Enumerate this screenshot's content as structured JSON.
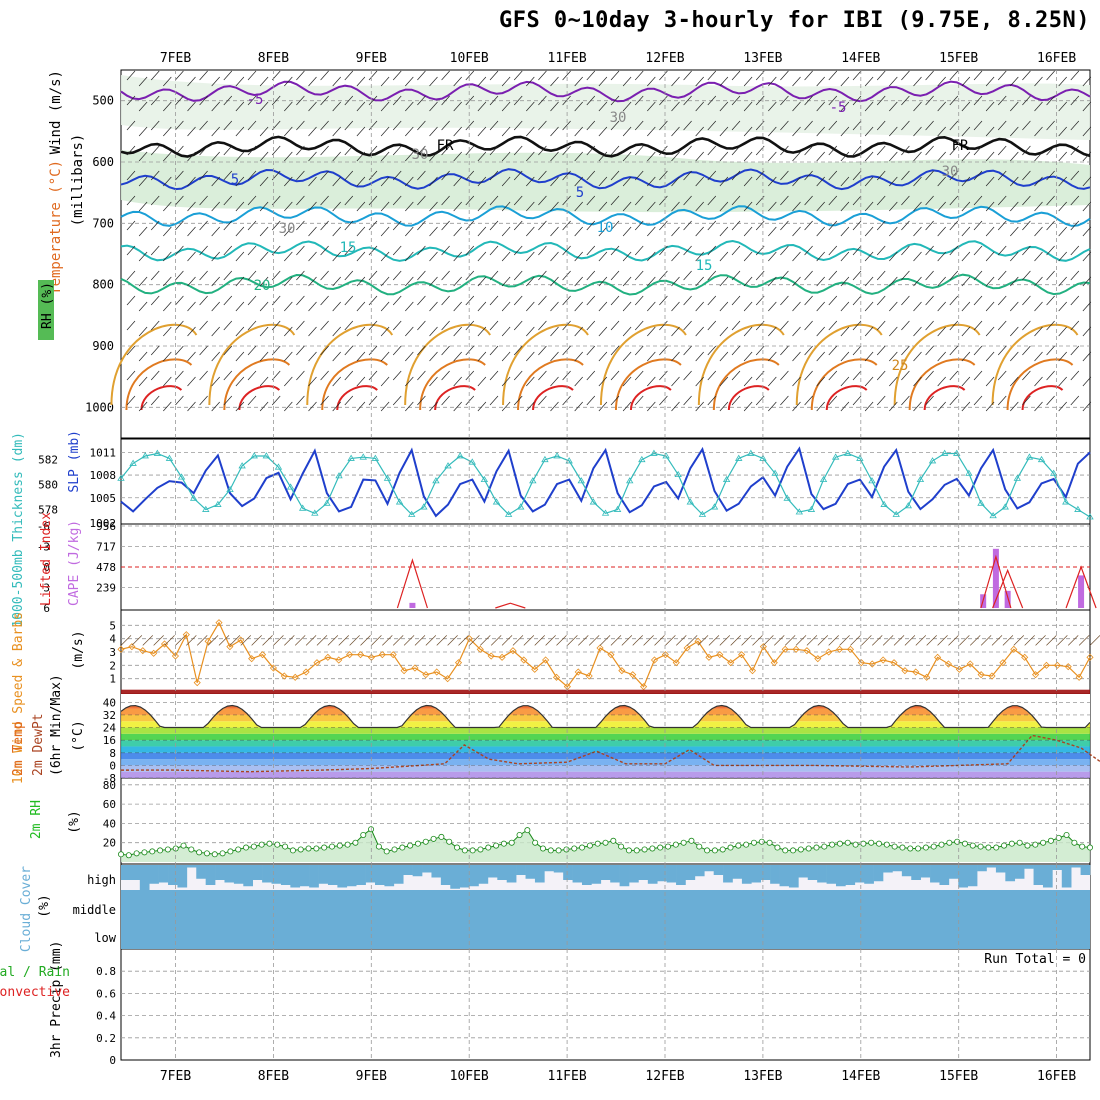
{
  "title": "GFS 0~10day 3-hourly for IBI (9.75E, 8.25N)",
  "run_total": "Run Total = 0",
  "date_labels": [
    "7FEB",
    "8FEB",
    "9FEB",
    "10FEB",
    "11FEB",
    "12FEB",
    "13FEB",
    "14FEB",
    "15FEB",
    "16FEB"
  ],
  "panel_labels": {
    "upper_wind": "Wind (m/s)",
    "upper_temp": "Temperature (°C)",
    "upper_rh": "RH (%)",
    "upper_mb": "(millibars)",
    "thickness": "1000-500mb Thickness (dm)",
    "slp": "SLP (mb)",
    "lifted_index": "Lifted Index",
    "cape": "CAPE (J/kg)",
    "wind10": "10m Wind Speed & Barbs",
    "wind10_unit": "(m/s)",
    "temp2m": "2m Temp",
    "dewpt2m": "2m DewPt",
    "tminmax": "(6hr Min/Max)",
    "temp_unit": "(°C)",
    "rh2m": "2m RH",
    "rh_unit": "(%)",
    "cloud": "Cloud Cover",
    "cloud_unit": "(%)",
    "precip": "3hr Precip (mm)",
    "precip_total_rain": "Total / Rain",
    "precip_convective": "Convective"
  },
  "colors": {
    "thickness": "#33bbbb",
    "slp": "#1f3fcc",
    "cape": "#c06ae0",
    "lifted_index": "#dd2222",
    "wind10": "#e89020",
    "rh2m": "#20bb20",
    "cloud": "#6aaed6",
    "temp_line": "#333333",
    "dewpt_line": "#aa4422"
  },
  "chart_data": [
    {
      "panel": "upper_air",
      "type": "contour",
      "y_axis": "pressure (mb)",
      "yticks": [
        500,
        600,
        700,
        800,
        900,
        1000
      ],
      "ylim": [
        1050,
        450
      ],
      "contour_labels": [
        "-5",
        "-5",
        "FR",
        "FR",
        "5",
        "5",
        "10",
        "15",
        "15",
        "20",
        "25",
        "30",
        "30",
        "30",
        "30"
      ],
      "isotherms_approx_mb": {
        "-5": 485,
        "0": 575,
        "5": 628,
        "10": 688,
        "15": 745,
        "20": 800
      }
    },
    {
      "panel": "thickness_slp",
      "type": "line",
      "yticks_left": [
        578,
        580,
        582
      ],
      "yticks_right": [
        1005,
        1008,
        1011
      ],
      "right_bottom_label": "1002",
      "ylim_left": [
        577,
        583.5
      ],
      "ylim_right": [
        1001.8,
        1012.5
      ],
      "series": [
        {
          "name": "SLP",
          "axis": "right",
          "values": [
            1004.5,
            1003.2,
            1004.8,
            1006.3,
            1007.2,
            1007.0,
            1005.6,
            1008.6,
            1010.6,
            1005.6,
            1003.9,
            1004.9,
            1007.6,
            1008.3,
            1004.8,
            1008.2,
            1011.2,
            1005.6,
            1003.2,
            1003.8,
            1007.4,
            1007.3,
            1004.2,
            1008.3,
            1011.3,
            1005.2,
            1002.6,
            1004.1,
            1006.8,
            1007.4,
            1004.5,
            1008.5,
            1011.2,
            1005.3,
            1003.2,
            1004.1,
            1006.8,
            1007.4,
            1004.6,
            1008.9,
            1011.3,
            1005.6,
            1003.1,
            1004.0,
            1006.5,
            1007.1,
            1004.9,
            1008.9,
            1011.4,
            1005.9,
            1003.3,
            1004.2,
            1006.5,
            1007.7,
            1005.3,
            1009.1,
            1011.5,
            1005.5,
            1003.5,
            1004.2,
            1006.8,
            1007.4,
            1005.1,
            1009.1,
            1011.3,
            1005.8,
            1003.5,
            1004.8,
            1006.7,
            1007.5,
            1005.3,
            1008.9,
            1011.3,
            1006.1,
            1003.6,
            1004.4,
            1006.9,
            1007.5,
            1005.1,
            1009.5,
            1011.0
          ]
        },
        {
          "name": "Thickness",
          "axis": "left",
          "values": [
            580.5,
            581.7,
            582.3,
            582.5,
            582.1,
            580.6,
            578.9,
            578.0,
            578.4,
            579.6,
            581.5,
            582.3,
            582.3,
            581.4,
            579.8,
            578.1,
            577.7,
            578.5,
            580.7,
            582.1,
            582.2,
            582.1,
            580.5,
            578.6,
            577.6,
            578.2,
            580.3,
            581.5,
            582.3,
            581.8,
            580.4,
            578.6,
            577.6,
            578.2,
            580.3,
            582.0,
            582.3,
            581.9,
            580.3,
            578.6,
            577.7,
            578.0,
            580.3,
            582.0,
            582.5,
            582.3,
            580.8,
            578.6,
            577.6,
            578.2,
            580.4,
            582.1,
            582.5,
            582.1,
            580.9,
            578.9,
            577.8,
            578.0,
            580.4,
            582.2,
            582.5,
            582.1,
            580.3,
            578.4,
            577.6,
            578.3,
            580.4,
            581.9,
            582.5,
            582.5,
            580.9,
            578.5,
            577.5,
            578.2,
            580.5,
            582.2,
            582.0,
            580.9,
            578.6,
            578.0,
            577.4
          ]
        }
      ]
    },
    {
      "panel": "lifted_index_cape",
      "type": "bar",
      "yticks_left": [
        -6,
        -3,
        0,
        3,
        6
      ],
      "yticks_right": [
        239,
        478,
        717,
        956
      ],
      "ylim_cape": [
        0,
        956
      ],
      "cape_bars": [
        {
          "day": 2.42,
          "value": 60
        },
        {
          "day": 8.25,
          "value": 160
        },
        {
          "day": 8.38,
          "value": 690
        },
        {
          "day": 8.5,
          "value": 200
        },
        {
          "day": 9.25,
          "value": 380
        }
      ],
      "lifted_index_peaks": [
        {
          "day": 2.42,
          "value": -1
        },
        {
          "day": 3.42,
          "value": 5.3
        },
        {
          "day": 8.38,
          "value": -1.5
        },
        {
          "day": 8.5,
          "value": 0.5
        },
        {
          "day": 9.25,
          "value": 0
        }
      ]
    },
    {
      "panel": "wind10",
      "type": "line",
      "name": "10m Wind Speed",
      "yticks": [
        1,
        2,
        3,
        4,
        5
      ],
      "ylim": [
        0,
        6
      ],
      "values": [
        3.2,
        3.4,
        3.1,
        2.9,
        3.6,
        2.7,
        4.3,
        0.7,
        3.8,
        5.2,
        3.4,
        3.9,
        2.5,
        2.8,
        1.8,
        1.2,
        1.1,
        1.5,
        2.2,
        2.6,
        2.4,
        2.8,
        2.8,
        2.6,
        2.8,
        2.8,
        1.6,
        1.8,
        1.3,
        1.5,
        1.0,
        2.2,
        4.0,
        3.2,
        2.7,
        2.6,
        3.1,
        2.4,
        1.7,
        2.4,
        1.1,
        0.4,
        1.5,
        1.2,
        3.3,
        2.8,
        1.6,
        1.3,
        0.4,
        2.4,
        2.8,
        2.2,
        3.3,
        3.8,
        2.6,
        2.8,
        2.2,
        2.8,
        1.6,
        3.4,
        2.2,
        3.2,
        3.2,
        3.1,
        2.5,
        3.0,
        3.2,
        3.2,
        2.2,
        2.1,
        2.4,
        2.2,
        1.6,
        1.5,
        1.1,
        2.6,
        2.1,
        1.7,
        2.1,
        1.3,
        1.2,
        2.2,
        3.2,
        2.6,
        1.3,
        2.0,
        2.0,
        1.9,
        1.1,
        2.6
      ]
    },
    {
      "panel": "temp_dewpt",
      "type": "area",
      "yticks": [
        -8,
        0,
        8,
        16,
        24,
        32,
        40
      ],
      "ylim": [
        -8,
        44
      ],
      "daily_max_temp": 38,
      "daily_min_temp": 24,
      "dewpt": [
        {
          "day": 0,
          "value": -3
        },
        {
          "day": 0.75,
          "value": -4
        },
        {
          "day": 1.5,
          "value": -3
        },
        {
          "day": 2.0,
          "value": -2
        },
        {
          "day": 2.5,
          "value": 0
        },
        {
          "day": 2.75,
          "value": 1
        },
        {
          "day": 2.95,
          "value": 13
        },
        {
          "day": 3.2,
          "value": 4
        },
        {
          "day": 3.5,
          "value": 1
        },
        {
          "day": 4.0,
          "value": 2
        },
        {
          "day": 4.3,
          "value": 9
        },
        {
          "day": 4.6,
          "value": 1
        },
        {
          "day": 5.0,
          "value": 1
        },
        {
          "day": 5.25,
          "value": 10
        },
        {
          "day": 5.5,
          "value": 0
        },
        {
          "day": 6.5,
          "value": 0
        },
        {
          "day": 7.5,
          "value": -1
        },
        {
          "day": 8.5,
          "value": 1
        },
        {
          "day": 8.75,
          "value": 19
        },
        {
          "day": 9.0,
          "value": 16
        },
        {
          "day": 9.25,
          "value": 11
        },
        {
          "day": 9.5,
          "value": 0
        },
        {
          "day": 9.85,
          "value": 20
        }
      ]
    },
    {
      "panel": "rh2m",
      "type": "line",
      "name": "2m RH",
      "yticks": [
        20,
        40,
        60,
        80
      ],
      "ylim": [
        0,
        85
      ],
      "values": [
        8,
        7,
        9,
        10,
        11,
        12,
        13,
        14,
        17,
        13,
        10,
        9,
        8,
        9,
        11,
        13,
        15,
        16,
        18,
        19,
        18,
        16,
        12,
        13,
        14,
        14,
        15,
        16,
        17,
        18,
        20,
        28,
        34,
        16,
        11,
        13,
        15,
        17,
        19,
        21,
        24,
        26,
        21,
        15,
        12,
        12,
        13,
        15,
        17,
        19,
        20,
        28,
        33,
        20,
        14,
        12,
        12,
        13,
        14,
        15,
        17,
        19,
        20,
        22,
        16,
        12,
        12,
        13,
        14,
        15,
        16,
        18,
        20,
        22,
        16,
        12,
        12,
        13,
        15,
        17,
        18,
        20,
        21,
        20,
        15,
        12,
        12,
        13,
        14,
        15,
        16,
        18,
        19,
        20,
        18,
        19,
        20,
        19,
        18,
        16,
        15,
        14,
        14,
        15,
        16,
        18,
        20,
        21,
        19,
        17,
        16,
        15,
        15,
        17,
        19,
        20,
        17,
        18,
        20,
        22,
        25,
        28,
        20,
        16,
        15
      ]
    },
    {
      "panel": "cloud_cover",
      "type": "bar",
      "levels": [
        "high",
        "middle",
        "low"
      ],
      "high_values": [
        60,
        60,
        100,
        75,
        70,
        80,
        90,
        10,
        55,
        80,
        60,
        70,
        75,
        85,
        60,
        70,
        75,
        80,
        90,
        85,
        90,
        75,
        80,
        90,
        85,
        80,
        70,
        80,
        85,
        75,
        40,
        45,
        30,
        50,
        80,
        95,
        90,
        85,
        75,
        50,
        60,
        70,
        40,
        55,
        70,
        25,
        30,
        60,
        70,
        80,
        75,
        60,
        70,
        85,
        70,
        60,
        75,
        65,
        70,
        80,
        60,
        45,
        25,
        40,
        70,
        55,
        75,
        70,
        60,
        75,
        85,
        90,
        50,
        60,
        70,
        75,
        85,
        80,
        70,
        75,
        65,
        30,
        25,
        45,
        60,
        50,
        70,
        80,
        55,
        90,
        85,
        25,
        10,
        30,
        65,
        55,
        15,
        80,
        90,
        20,
        90,
        10,
        40
      ]
    },
    {
      "panel": "precip",
      "type": "bar",
      "yticks": [
        0,
        0.2,
        0.4,
        0.6,
        0.8
      ],
      "ylim": [
        0,
        1
      ],
      "values": []
    }
  ]
}
